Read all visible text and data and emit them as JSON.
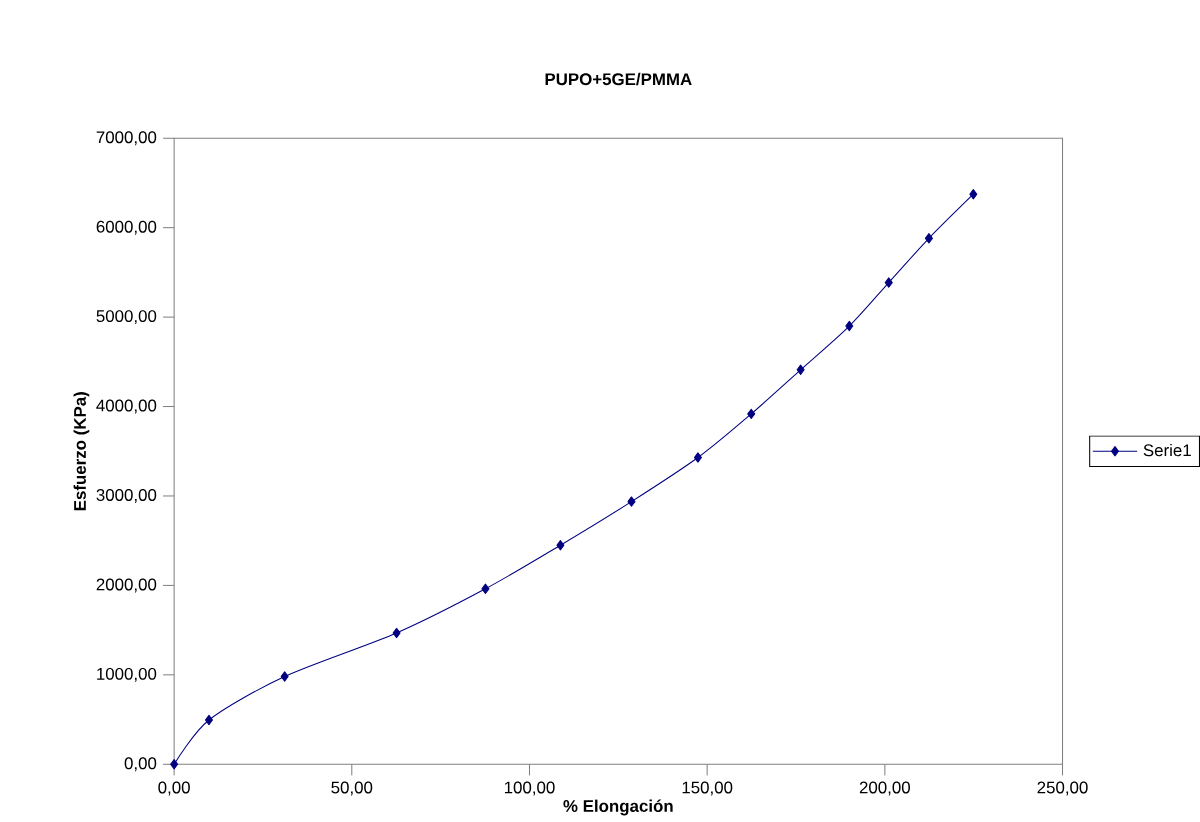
{
  "chart_data": {
    "type": "line",
    "title": "PUPO+5GE/PMMA",
    "xlabel": "% Elongación",
    "ylabel": "Esfuerzo (KPa)",
    "series": [
      {
        "name": "Serie1",
        "color": "#000080",
        "x": [
          0,
          9.8,
          31.1,
          62.6,
          87.6,
          108.7,
          128.7,
          147.4,
          162.4,
          176.3,
          190.0,
          201.1,
          212.4,
          224.9
        ],
        "values": [
          0,
          495,
          981,
          1468,
          1962,
          2449,
          2937,
          3430,
          3918,
          4411,
          4900,
          5386,
          5881,
          6374
        ]
      }
    ],
    "xlim": [
      0,
      250
    ],
    "ylim": [
      0,
      7000
    ],
    "xticks": [
      {
        "value": 0,
        "label": "0,00"
      },
      {
        "value": 50,
        "label": "50,00"
      },
      {
        "value": 100,
        "label": "100,00"
      },
      {
        "value": 150,
        "label": "150,00"
      },
      {
        "value": 200,
        "label": "200,00"
      },
      {
        "value": 250,
        "label": "250,00"
      }
    ],
    "yticks": [
      {
        "value": 0,
        "label": "0,00"
      },
      {
        "value": 1000,
        "label": "1000,00"
      },
      {
        "value": 2000,
        "label": "2000,00"
      },
      {
        "value": 3000,
        "label": "3000,00"
      },
      {
        "value": 4000,
        "label": "4000,00"
      },
      {
        "value": 5000,
        "label": "5000,00"
      },
      {
        "value": 6000,
        "label": "6000,00"
      },
      {
        "value": 7000,
        "label": "7000,00"
      }
    ],
    "grid": false,
    "legend": "right",
    "marker": "diamond",
    "line_style": "solid"
  }
}
